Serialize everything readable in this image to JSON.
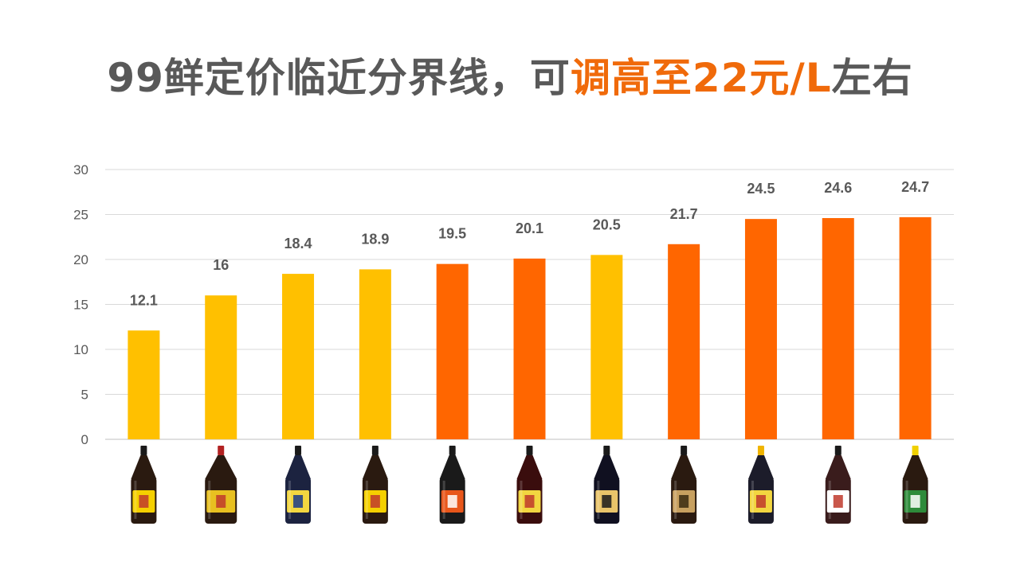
{
  "title": {
    "part1": "99鲜定价临近分界线，可",
    "part2": "调高至22元/L",
    "part3": "左右",
    "colors": {
      "dark": "#595959",
      "accent": "#f06a0a"
    }
  },
  "chart_data": {
    "type": "bar",
    "title": "99鲜定价临近分界线，可调高至22元/L左右",
    "xlabel": "",
    "ylabel": "",
    "ylim": [
      0,
      30
    ],
    "yticks": [
      "0",
      "5",
      "10",
      "15",
      "20",
      "25",
      "30"
    ],
    "grid": true,
    "categories": [
      "",
      "",
      "",
      "",
      "",
      "",
      "",
      "",
      "",
      "",
      ""
    ],
    "values": [
      12.1,
      16,
      18.4,
      18.9,
      19.5,
      20.1,
      20.5,
      21.7,
      24.5,
      24.6,
      24.7
    ],
    "value_labels": [
      "12.1",
      "16",
      "18.4",
      "18.9",
      "19.5",
      "20.1",
      "20.5",
      "21.7",
      "24.5",
      "24.6",
      "24.7"
    ],
    "bar_colors": [
      "#ffc000",
      "#ffc000",
      "#ffc000",
      "#ffc000",
      "#ff6600",
      "#ff6600",
      "#ffc000",
      "#ff6600",
      "#ff6600",
      "#ff6600",
      "#ff6600"
    ],
    "bottle_images": [
      {
        "label": "soy-sauce-bottle",
        "cap": "#1a1a1a",
        "body": "#2a1a10",
        "label_color": "#f5d000",
        "label_text_color": "#c0392b"
      },
      {
        "label": "soy-sauce-jug",
        "cap": "#b22222",
        "body": "#2a1a10",
        "label_color": "#e8c020",
        "label_text_color": "#c0392b"
      },
      {
        "label": "soy-sauce-bottle",
        "cap": "#1a1a1a",
        "body": "#1c2340",
        "label_color": "#f2d640",
        "label_text_color": "#1a3a8a"
      },
      {
        "label": "soy-sauce-bottle",
        "cap": "#1a1a1a",
        "body": "#2a1a10",
        "label_color": "#f5d000",
        "label_text_color": "#c0392b"
      },
      {
        "label": "soy-sauce-bottle",
        "cap": "#1a1a1a",
        "body": "#1a1a1a",
        "label_color": "#e8561a",
        "label_text_color": "#ffffff"
      },
      {
        "label": "soy-sauce-bottle",
        "cap": "#1a1a1a",
        "body": "#3a0d0d",
        "label_color": "#f2d640",
        "label_text_color": "#c0392b"
      },
      {
        "label": "soy-sauce-bottle",
        "cap": "#1a1a1a",
        "body": "#101020",
        "label_color": "#e9c46a",
        "label_text_color": "#1a1a1a"
      },
      {
        "label": "soy-sauce-bottle",
        "cap": "#1a1a1a",
        "body": "#2a1a10",
        "label_color": "#c7a060",
        "label_text_color": "#3a2a10"
      },
      {
        "label": "soy-sauce-bottle",
        "cap": "#f0b400",
        "body": "#1c1c2a",
        "label_color": "#f2d640",
        "label_text_color": "#c0392b"
      },
      {
        "label": "soy-sauce-bottle",
        "cap": "#1a1a1a",
        "body": "#3a1c1c",
        "label_color": "#ffffff",
        "label_text_color": "#c0392b"
      },
      {
        "label": "soy-sauce-bottle",
        "cap": "#f0d000",
        "body": "#2a1a10",
        "label_color": "#2e8b3a",
        "label_text_color": "#ffffff"
      }
    ]
  }
}
